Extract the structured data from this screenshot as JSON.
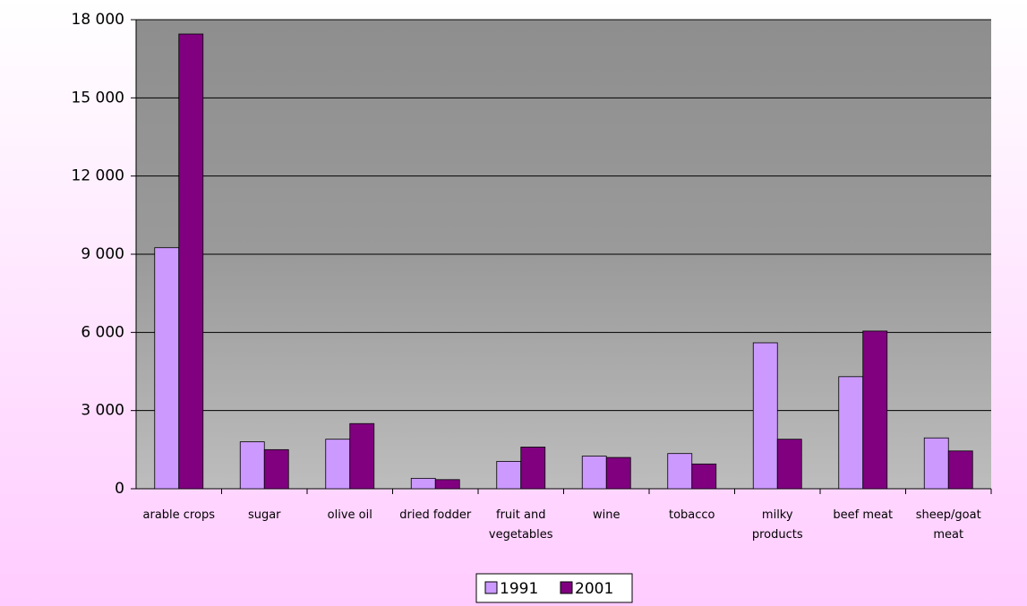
{
  "chart_data": {
    "type": "bar",
    "categories": [
      "arable crops",
      "sugar",
      "olive oil",
      "dried fodder",
      "fruit and vegetables",
      "wine",
      "tobacco",
      "milky products",
      "beef meat",
      "sheep/goat meat"
    ],
    "series": [
      {
        "name": "1991",
        "color": "#cc99ff",
        "values": [
          9250,
          1800,
          1900,
          400,
          1050,
          1250,
          1350,
          5600,
          4300,
          1950
        ]
      },
      {
        "name": "2001",
        "color": "#800080",
        "values": [
          17450,
          1500,
          2500,
          350,
          1600,
          1200,
          950,
          1900,
          6050,
          1450
        ]
      }
    ],
    "ylim": [
      0,
      18000
    ],
    "yticks": [
      0,
      {
        "value": 3000,
        "label": "3 000"
      },
      {
        "value": 6000,
        "label": "6 000"
      },
      {
        "value": 9000,
        "label": "9 000"
      },
      {
        "value": 12000,
        "label": "12 000"
      },
      {
        "value": 15000,
        "label": "15 000"
      },
      {
        "value": 18000,
        "label": "18 000"
      }
    ],
    "grid": true,
    "legend": "bottom"
  }
}
